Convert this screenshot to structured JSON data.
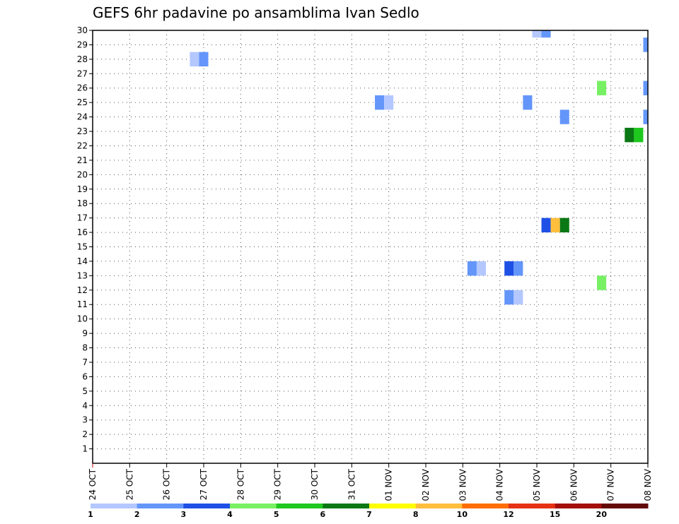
{
  "chart_data": {
    "type": "heatmap",
    "title": "GEFS 6hr padavine po ansamblima Ivan Sedlo",
    "xlabel": "",
    "ylabel": "",
    "x_ticks": [
      "24 OCT",
      "25 OCT",
      "26 OCT",
      "27 OCT",
      "28 OCT",
      "29 OCT",
      "30 OCT",
      "31 OCT",
      "01 NOV",
      "02 NOV",
      "03 NOV",
      "04 NOV",
      "05 NOV",
      "06 NOV",
      "07 NOV",
      "08 NOV"
    ],
    "y_ticks": [
      "1",
      "2",
      "3",
      "4",
      "5",
      "6",
      "7",
      "8",
      "9",
      "10",
      "11",
      "12",
      "13",
      "14",
      "15",
      "16",
      "17",
      "18",
      "19",
      "20",
      "21",
      "22",
      "23",
      "24",
      "25",
      "26",
      "27",
      "28",
      "29",
      "30"
    ],
    "xlim": [
      0,
      15
    ],
    "ylim": [
      0,
      30
    ],
    "grid": true,
    "step_days": 0.25,
    "colorbar": {
      "colors": [
        "#b4c8ff",
        "#6496fa",
        "#1e50e6",
        "#78f064",
        "#1ec81e",
        "#0a7814",
        "#ffff00",
        "#ffbe3c",
        "#ff6e00",
        "#e63214",
        "#a50f0a",
        "#640a0a"
      ],
      "labels": [
        "1",
        "2",
        "3",
        "4",
        "5",
        "6",
        "7",
        "8",
        "10",
        "12",
        "15",
        "20"
      ]
    },
    "cells": [
      {
        "t": 2.75,
        "member": 28,
        "cls": 0
      },
      {
        "t": 3.0,
        "member": 28,
        "cls": 1
      },
      {
        "t": 7.75,
        "member": 25,
        "cls": 1
      },
      {
        "t": 8.0,
        "member": 25,
        "cls": 0
      },
      {
        "t": 10.25,
        "member": 13.5,
        "cls": 1
      },
      {
        "t": 10.5,
        "member": 13.5,
        "cls": 0
      },
      {
        "t": 11.25,
        "member": 13.5,
        "cls": 2
      },
      {
        "t": 11.5,
        "member": 13.5,
        "cls": 1
      },
      {
        "t": 11.25,
        "member": 11.5,
        "cls": 1
      },
      {
        "t": 11.5,
        "member": 11.5,
        "cls": 0
      },
      {
        "t": 11.75,
        "member": 25,
        "cls": 1
      },
      {
        "t": 12.0,
        "member": 30,
        "cls": 0
      },
      {
        "t": 12.25,
        "member": 30,
        "cls": 1
      },
      {
        "t": 12.25,
        "member": 16.5,
        "cls": 2
      },
      {
        "t": 12.5,
        "member": 16.5,
        "cls": 7
      },
      {
        "t": 12.75,
        "member": 16.5,
        "cls": 5
      },
      {
        "t": 12.75,
        "member": 24,
        "cls": 1
      },
      {
        "t": 13.75,
        "member": 26,
        "cls": 3
      },
      {
        "t": 13.75,
        "member": 12.5,
        "cls": 3
      },
      {
        "t": 14.5,
        "member": 22.75,
        "cls": 5
      },
      {
        "t": 14.75,
        "member": 22.75,
        "cls": 4
      },
      {
        "t": 15.0,
        "member": 29,
        "cls": 1
      },
      {
        "t": 15.0,
        "member": 26,
        "cls": 1
      },
      {
        "t": 15.0,
        "member": 24,
        "cls": 1
      }
    ]
  }
}
